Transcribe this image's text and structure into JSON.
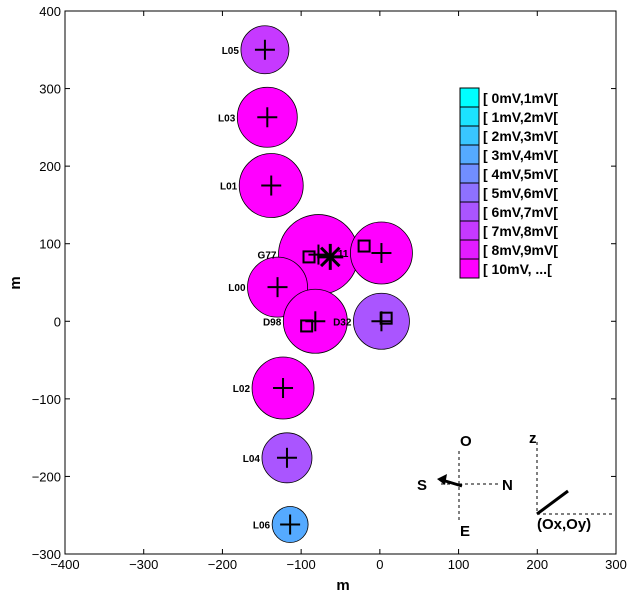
{
  "chart_data": {
    "type": "scatter",
    "title": "",
    "xlabel": "m",
    "ylabel": "m",
    "xlim": [
      -400,
      300
    ],
    "ylim": [
      -300,
      400
    ],
    "xticks": [
      -400,
      -300,
      -200,
      -100,
      0,
      100,
      200,
      300
    ],
    "yticks": [
      -300,
      -200,
      -100,
      0,
      100,
      200,
      300,
      400
    ],
    "xtick_labels": [
      "−400",
      "−300",
      "−200",
      "−100",
      "0",
      "100",
      "200",
      "300"
    ],
    "ytick_labels": [
      "−300",
      "−200",
      "−100",
      "0",
      "100",
      "200",
      "300",
      "400"
    ],
    "grid": false,
    "legend_position": "right",
    "legend": [
      {
        "label": "[ 0mV,1mV[",
        "color": "#00ffff"
      },
      {
        "label": "[ 1mV,2mV[",
        "color": "#1ce3ff"
      },
      {
        "label": "[ 2mV,3mV[",
        "color": "#39c6ff"
      },
      {
        "label": "[ 3mV,4mV[",
        "color": "#55aaff"
      },
      {
        "label": "[ 4mV,5mV[",
        "color": "#718eff"
      },
      {
        "label": "[ 5mV,6mV[",
        "color": "#8e71ff"
      },
      {
        "label": "[ 6mV,7mV[",
        "color": "#aa55ff"
      },
      {
        "label": "[ 7mV,8mV[",
        "color": "#c639ff"
      },
      {
        "label": "[ 8mV,9mV[",
        "color": "#e31cff"
      },
      {
        "label": "[ 10mV, ...[",
        "color": "#ff00ff"
      }
    ],
    "points": [
      {
        "label": "L05",
        "x": -146,
        "y": 350,
        "r": 24,
        "color": "#c639ff"
      },
      {
        "label": "L03",
        "x": -143,
        "y": 263,
        "r": 30,
        "color": "#ff00ff"
      },
      {
        "label": "L01",
        "x": -138,
        "y": 175,
        "r": 32,
        "color": "#ff00ff"
      },
      {
        "label": "G77",
        "x": -78,
        "y": 86,
        "r": 40,
        "color": "#ff00ff"
      },
      {
        "label": "11",
        "x": 2,
        "y": 88,
        "r": 31,
        "color": "#ff00ff"
      },
      {
        "label": "L00",
        "x": -130,
        "y": 44,
        "r": 30,
        "color": "#ff00ff"
      },
      {
        "label": "D98",
        "x": -82,
        "y": 0,
        "r": 32,
        "color": "#ff00ff"
      },
      {
        "label": "D32",
        "x": 2,
        "y": 0,
        "r": 28,
        "color": "#aa55ff"
      },
      {
        "label": "L02",
        "x": -123,
        "y": -86,
        "r": 31,
        "color": "#ff00ff"
      },
      {
        "label": "L04",
        "x": -118,
        "y": -176,
        "r": 25,
        "color": "#aa55ff"
      },
      {
        "label": "L06",
        "x": -114,
        "y": -262,
        "r": 18,
        "color": "#55aaff"
      }
    ],
    "squares": [
      {
        "x": -90,
        "y": 83
      },
      {
        "x": -20,
        "y": 97
      },
      {
        "x": -93,
        "y": -6
      },
      {
        "x": 8,
        "y": 4
      }
    ],
    "star": {
      "x": -63,
      "y": 83
    },
    "compass": {
      "o_label": "O",
      "s_label": "S",
      "n_label": "N",
      "e_label": "E"
    },
    "axes_indicator": {
      "z_label": "z",
      "origin_label": "(Ox,Oy)"
    }
  }
}
